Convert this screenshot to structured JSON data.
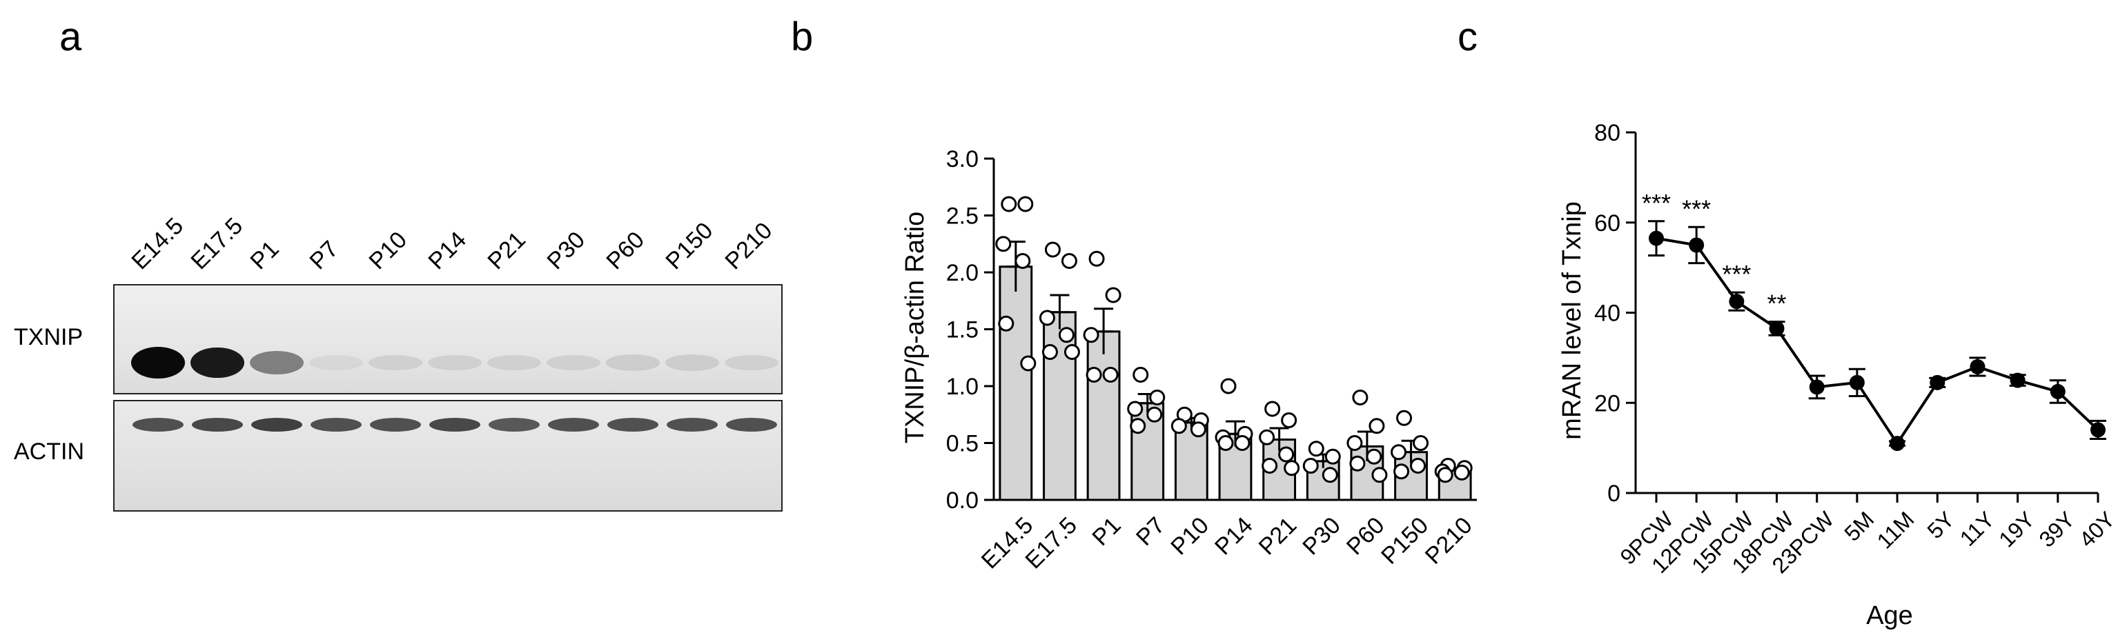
{
  "panel_a": {
    "letter": "a",
    "lanes": [
      "E14.5",
      "E17.5",
      "P1",
      "P7",
      "P10",
      "P14",
      "P21",
      "P30",
      "P60",
      "P150",
      "P210"
    ],
    "rows": [
      "TXNIP",
      "ACTIN"
    ],
    "txnip_band_intensity": [
      1.0,
      0.95,
      0.55,
      0.05,
      0.1,
      0.1,
      0.1,
      0.1,
      0.12,
      0.12,
      0.1
    ],
    "actin_band_intensity": [
      0.75,
      0.8,
      0.85,
      0.75,
      0.75,
      0.8,
      0.7,
      0.75,
      0.75,
      0.75,
      0.75
    ]
  },
  "chart_data": [
    {
      "panel_letter": "b",
      "type": "bar",
      "categories": [
        "E14.5",
        "E17.5",
        "P1",
        "P7",
        "P10",
        "P14",
        "P21",
        "P30",
        "P60",
        "P150",
        "P210"
      ],
      "values": [
        2.05,
        1.65,
        1.48,
        0.85,
        0.68,
        0.58,
        0.53,
        0.34,
        0.47,
        0.42,
        0.26
      ],
      "errors": [
        0.22,
        0.15,
        0.2,
        0.08,
        0.04,
        0.11,
        0.1,
        0.06,
        0.13,
        0.1,
        0.02
      ],
      "points": [
        [
          2.6,
          2.6,
          2.25,
          2.1,
          1.55,
          1.2
        ],
        [
          2.2,
          2.1,
          1.6,
          1.45,
          1.3,
          1.3
        ],
        [
          2.12,
          1.8,
          1.45,
          1.1,
          1.1
        ],
        [
          1.1,
          0.9,
          0.8,
          0.75,
          0.65
        ],
        [
          0.75,
          0.7,
          0.65,
          0.62
        ],
        [
          1.0,
          0.58,
          0.55,
          0.5,
          0.5
        ],
        [
          0.8,
          0.7,
          0.55,
          0.4,
          0.3,
          0.28
        ],
        [
          0.45,
          0.38,
          0.3,
          0.22
        ],
        [
          0.9,
          0.65,
          0.5,
          0.38,
          0.32,
          0.22
        ],
        [
          0.72,
          0.5,
          0.42,
          0.3,
          0.25
        ],
        [
          0.3,
          0.28,
          0.25,
          0.24,
          0.22
        ]
      ],
      "xlabel": "",
      "ylabel": "TXNIP/β-actin Ratio",
      "ylim": [
        0,
        3.0
      ],
      "yticks": [
        "0.0",
        "0.5",
        "1.0",
        "1.5",
        "2.0",
        "2.5",
        "3.0"
      ]
    },
    {
      "panel_letter": "c",
      "type": "line",
      "categories": [
        "9PCW",
        "12PCW",
        "15PCW",
        "18PCW",
        "23PCW",
        "5M",
        "11M",
        "5Y",
        "11Y",
        "19Y",
        "39Y",
        "40Y"
      ],
      "values": [
        56.5,
        55,
        42.5,
        36.5,
        23.5,
        24.5,
        11,
        24.5,
        28,
        25,
        22.5,
        14
      ],
      "errors": [
        3.8,
        4,
        2,
        1.5,
        2.5,
        3,
        0.5,
        1,
        2,
        1.2,
        2.5,
        2
      ],
      "significance": [
        "***",
        "***",
        "***",
        "**",
        "",
        "",
        "",
        "",
        "",
        "",
        "",
        ""
      ],
      "xlabel": "Age",
      "ylabel": "mRAN level of Txnip",
      "ylim": [
        0,
        80
      ],
      "yticks": [
        "0",
        "20",
        "40",
        "60",
        "80"
      ]
    }
  ]
}
